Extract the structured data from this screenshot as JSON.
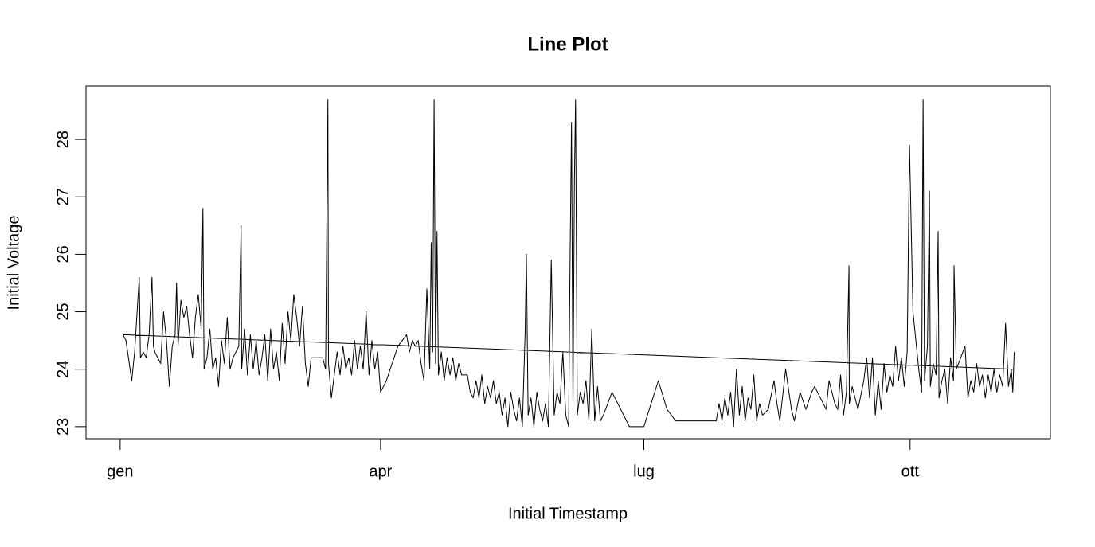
{
  "chart_data": {
    "type": "line",
    "title": "Line Plot",
    "x_label": "Initial Timestamp",
    "y_label": "Initial Voltage",
    "color": "#000000",
    "xlim": [
      -11.8,
      321.5
    ],
    "ylim": [
      22.79,
      28.93
    ],
    "xticks": [
      {
        "value": 0,
        "label": "gen"
      },
      {
        "value": 90,
        "label": "apr"
      },
      {
        "value": 181,
        "label": "lug"
      },
      {
        "value": 273,
        "label": "ott"
      }
    ],
    "yticks": [
      23,
      24,
      25,
      26,
      27,
      28
    ],
    "x": [
      308.7,
      1,
      2,
      4,
      5,
      6.6,
      7,
      8,
      9,
      10,
      11,
      11.5,
      12,
      14,
      15,
      16,
      17,
      18,
      19,
      19.5,
      20,
      21,
      22,
      23,
      24,
      25,
      26,
      27,
      28,
      28.6,
      29,
      30,
      31,
      32,
      33,
      34,
      35,
      36,
      37,
      38,
      39,
      41,
      41.8,
      42,
      43,
      44,
      45,
      46,
      47,
      48,
      49,
      50,
      51,
      52,
      53,
      54,
      55,
      56,
      57,
      58,
      59,
      60,
      61,
      62,
      63,
      64,
      65,
      66,
      68,
      70,
      71,
      71.8,
      72,
      73,
      74,
      75,
      76,
      77,
      78,
      79,
      80,
      81,
      82,
      83,
      84,
      85,
      86,
      87,
      88,
      89,
      90,
      92,
      96,
      99,
      100,
      101,
      102,
      103,
      104,
      105,
      106,
      107,
      107.5,
      108,
      108.5,
      109,
      109.5,
      110,
      111,
      112,
      113,
      114,
      115,
      116,
      117,
      118,
      120,
      121,
      122,
      123,
      124,
      125,
      126,
      127,
      128,
      129,
      130,
      131,
      132,
      133,
      134,
      135,
      136,
      137,
      138,
      139,
      140,
      140.4,
      141,
      142,
      143,
      144,
      145,
      146,
      147,
      148,
      149,
      150,
      151,
      152,
      153,
      154,
      155,
      155.5,
      156,
      156.5,
      157,
      157.4,
      158,
      159,
      160,
      161,
      162,
      163,
      164,
      165,
      166,
      167,
      170,
      176,
      181,
      186,
      189,
      192,
      206,
      207,
      208,
      209,
      210,
      211,
      212,
      213,
      214,
      215,
      216,
      217,
      218,
      219,
      220,
      221,
      222,
      224,
      226,
      227,
      228,
      230,
      232,
      233,
      235,
      237,
      239,
      240,
      243,
      244,
      245,
      247,
      248,
      249,
      250,
      251,
      251.9,
      252,
      253,
      255,
      257,
      258,
      259,
      260,
      261,
      262,
      263,
      264,
      265,
      266,
      267,
      268,
      269,
      270,
      271,
      272,
      272.8,
      274,
      276,
      277,
      277.5,
      278,
      279,
      279.7,
      280,
      281,
      282,
      282.7,
      283,
      284,
      285,
      286,
      287,
      288,
      288.2,
      289,
      292,
      293,
      294,
      295,
      296,
      297,
      298,
      299,
      300,
      301,
      302,
      303,
      304,
      305,
      306,
      307,
      308,
      308.5,
      309
    ],
    "values": [
      24.0,
      24.6,
      24.5,
      23.8,
      24.3,
      25.6,
      24.2,
      24.3,
      24.2,
      24.6,
      25.6,
      24.4,
      24.3,
      24.1,
      25.0,
      24.5,
      23.7,
      24.4,
      24.6,
      25.5,
      24.4,
      25.2,
      24.9,
      25.1,
      24.6,
      24.2,
      24.9,
      25.3,
      24.7,
      26.8,
      24.0,
      24.2,
      24.7,
      24.0,
      24.2,
      23.7,
      24.5,
      24.1,
      24.9,
      24.0,
      24.2,
      24.4,
      26.5,
      24.0,
      24.7,
      23.9,
      24.6,
      24.0,
      24.5,
      23.9,
      24.2,
      24.6,
      23.8,
      24.7,
      24.0,
      24.3,
      23.8,
      24.8,
      24.1,
      25.0,
      24.5,
      25.3,
      24.9,
      24.4,
      25.1,
      24.1,
      23.7,
      24.2,
      24.2,
      24.2,
      24.0,
      28.7,
      24.1,
      23.5,
      23.9,
      24.3,
      23.9,
      24.4,
      24.0,
      24.2,
      23.9,
      24.5,
      24.0,
      24.4,
      24.0,
      25.0,
      23.9,
      24.5,
      24.0,
      24.3,
      23.6,
      23.8,
      24.4,
      24.6,
      24.3,
      24.5,
      24.4,
      24.5,
      24.1,
      23.8,
      25.4,
      24.0,
      26.2,
      24.3,
      28.7,
      24.1,
      26.4,
      23.9,
      24.3,
      23.8,
      24.2,
      23.9,
      24.2,
      23.8,
      24.1,
      23.9,
      23.9,
      23.6,
      23.5,
      23.8,
      23.5,
      23.9,
      23.4,
      23.7,
      23.5,
      23.8,
      23.4,
      23.6,
      23.2,
      23.5,
      23.0,
      23.6,
      23.3,
      23.1,
      23.5,
      23.0,
      24.7,
      26.0,
      23.2,
      23.5,
      23.0,
      23.6,
      23.3,
      23.1,
      23.4,
      23.0,
      25.9,
      23.2,
      23.6,
      23.4,
      24.3,
      23.2,
      23.0,
      25.9,
      28.3,
      23.3,
      27.3,
      28.7,
      23.2,
      23.6,
      23.4,
      23.8,
      23.1,
      24.7,
      23.1,
      23.7,
      23.1,
      23.2,
      23.6,
      23.0,
      23.0,
      23.8,
      23.3,
      23.1,
      23.1,
      23.4,
      23.1,
      23.5,
      23.2,
      23.6,
      23.0,
      24.0,
      23.2,
      23.7,
      23.1,
      23.5,
      23.3,
      23.9,
      23.1,
      23.4,
      23.2,
      23.3,
      23.8,
      23.4,
      23.1,
      24.0,
      23.3,
      23.1,
      23.6,
      23.3,
      23.6,
      23.7,
      23.4,
      23.3,
      23.8,
      23.4,
      23.3,
      23.9,
      23.2,
      23.6,
      25.8,
      23.4,
      23.7,
      23.3,
      23.8,
      24.2,
      23.5,
      24.2,
      23.2,
      23.8,
      23.3,
      24.1,
      23.6,
      23.9,
      23.7,
      24.4,
      23.8,
      24.2,
      23.7,
      24.3,
      27.9,
      25.0,
      24.0,
      23.6,
      28.7,
      23.8,
      24.4,
      27.1,
      23.7,
      24.1,
      23.9,
      26.4,
      23.5,
      23.8,
      24.0,
      23.4,
      24.2,
      23.8,
      25.8,
      24.0,
      24.4,
      23.5,
      23.8,
      23.6,
      24.1,
      23.7,
      23.9,
      23.5,
      23.9,
      23.6,
      24.0,
      23.6,
      23.9,
      23.7,
      24.8,
      23.7,
      24.0,
      23.6,
      24.3
    ]
  }
}
